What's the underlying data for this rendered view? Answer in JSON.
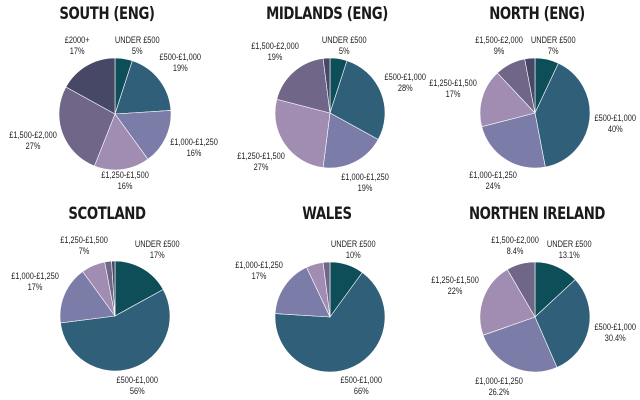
{
  "colors": {
    "under_500": "#0e4e59",
    "500_1000": "#2f5f79",
    "1000_1250": "#7b7ca8",
    "1250_1500": "#a18cb2",
    "1500_2000": "#6f6688",
    "2000_plus": "#464866"
  },
  "chart_data": [
    {
      "type": "pie",
      "title": "SOUTH (ENG)",
      "categories": [
        "UNDER £500",
        "£500-£1,000",
        "£1,000-£1,250",
        "£1,250-£1,500",
        "£1,500-£2,000",
        "£2000+"
      ],
      "values": [
        5,
        19,
        16,
        16,
        27,
        17
      ],
      "labels": [
        "5%",
        "19%",
        "16%",
        "16%",
        "27%",
        "17%"
      ]
    },
    {
      "type": "pie",
      "title": "MIDLANDS (ENG)",
      "categories": [
        "UNDER £500",
        "£500-£1,000",
        "£1,000-£1,250",
        "£1,250-£1,500",
        "£1,500-£2,000",
        "£2000+"
      ],
      "values": [
        5,
        28,
        19,
        27,
        19,
        2
      ],
      "labels": [
        "5%",
        "28%",
        "19%",
        "27%",
        "19%",
        ""
      ]
    },
    {
      "type": "pie",
      "title": "NORTH (ENG)",
      "categories": [
        "UNDER £500",
        "£500-£1,000",
        "£1,000-£1,250",
        "£1,250-£1,500",
        "£1,500-£2,000",
        "£2000+"
      ],
      "values": [
        7,
        40,
        24,
        17,
        9,
        3
      ],
      "labels": [
        "7%",
        "40%",
        "24%",
        "17%",
        "9%",
        ""
      ]
    },
    {
      "type": "pie",
      "title": "SCOTLAND",
      "categories": [
        "UNDER £500",
        "£500-£1,000",
        "£1,000-£1,250",
        "£1,250-£1,500",
        "£1,500-£2,000",
        "£2000+"
      ],
      "values": [
        17,
        56,
        17,
        7,
        2,
        1
      ],
      "labels": [
        "17%",
        "56%",
        "17%",
        "7%",
        "",
        ""
      ]
    },
    {
      "type": "pie",
      "title": "WALES",
      "categories": [
        "UNDER £500",
        "£500-£1,000",
        "£1,000-£1,250",
        "£1,250-£1,500",
        "£1,500-£2,000"
      ],
      "values": [
        10,
        66,
        17,
        5,
        2
      ],
      "labels": [
        "10%",
        "66%",
        "17%",
        "",
        ""
      ]
    },
    {
      "type": "pie",
      "title": "NORTHEN IRELAND",
      "categories": [
        "UNDER £500",
        "£500-£1,000",
        "£1,000-£1,250",
        "£1,250-£1,500",
        "£1,500-£2,000"
      ],
      "values": [
        13.1,
        30.4,
        26.2,
        22,
        8.4
      ],
      "labels": [
        "13.1%",
        "30.4%",
        "26.2%",
        "22%",
        "8.4%"
      ]
    }
  ],
  "panels": {
    "south": {
      "title": "SOUTH (ENG)",
      "l_under": {
        "cat": "UNDER £500",
        "val": "5%"
      },
      "l_500": {
        "cat": "£500-£1,000",
        "val": "19%"
      },
      "l_1000": {
        "cat": "£1,000-£1,250",
        "val": "16%"
      },
      "l_1250": {
        "cat": "£1,250-£1,500",
        "val": "16%"
      },
      "l_1500": {
        "cat": "£1,500-£2,000",
        "val": "27%"
      },
      "l_2000": {
        "cat": "£2000+",
        "val": "17%"
      }
    },
    "midlands": {
      "title": "MIDLANDS (ENG)",
      "l_under": {
        "cat": "UNDER £500",
        "val": "5%"
      },
      "l_500": {
        "cat": "£500-£1,000",
        "val": "28%"
      },
      "l_1000": {
        "cat": "£1,000-£1,250",
        "val": "19%"
      },
      "l_1250": {
        "cat": "£1,250-£1,500",
        "val": "27%"
      },
      "l_1500": {
        "cat": "£1,500-£2,000",
        "val": "19%"
      }
    },
    "north": {
      "title": "NORTH (ENG)",
      "l_under": {
        "cat": "UNDER £500",
        "val": "7%"
      },
      "l_500": {
        "cat": "£500-£1,000",
        "val": "40%"
      },
      "l_1000": {
        "cat": "£1,000-£1,250",
        "val": "24%"
      },
      "l_1250": {
        "cat": "£1,250-£1,500",
        "val": "17%"
      },
      "l_1500": {
        "cat": "£1,500-£2,000",
        "val": "9%"
      }
    },
    "scotland": {
      "title": "SCOTLAND",
      "l_under": {
        "cat": "UNDER £500",
        "val": "17%"
      },
      "l_500": {
        "cat": "£500-£1,000",
        "val": "56%"
      },
      "l_1000": {
        "cat": "£1,000-£1,250",
        "val": "17%"
      },
      "l_1250": {
        "cat": "£1,250-£1,500",
        "val": "7%"
      }
    },
    "wales": {
      "title": "WALES",
      "l_under": {
        "cat": "UNDER £500",
        "val": "10%"
      },
      "l_500": {
        "cat": "£500-£1,000",
        "val": "66%"
      },
      "l_1000": {
        "cat": "£1,000-£1,250",
        "val": "17%"
      }
    },
    "ni": {
      "title": "NORTHEN IRELAND",
      "l_under": {
        "cat": "UNDER £500",
        "val": "13.1%"
      },
      "l_500": {
        "cat": "£500-£1,000",
        "val": "30.4%"
      },
      "l_1000": {
        "cat": "£1,000-£1,250",
        "val": "26.2%"
      },
      "l_1250": {
        "cat": "£1,250-£1,500",
        "val": "22%"
      },
      "l_1500": {
        "cat": "£1,500-£2,000",
        "val": "8.4%"
      }
    }
  }
}
